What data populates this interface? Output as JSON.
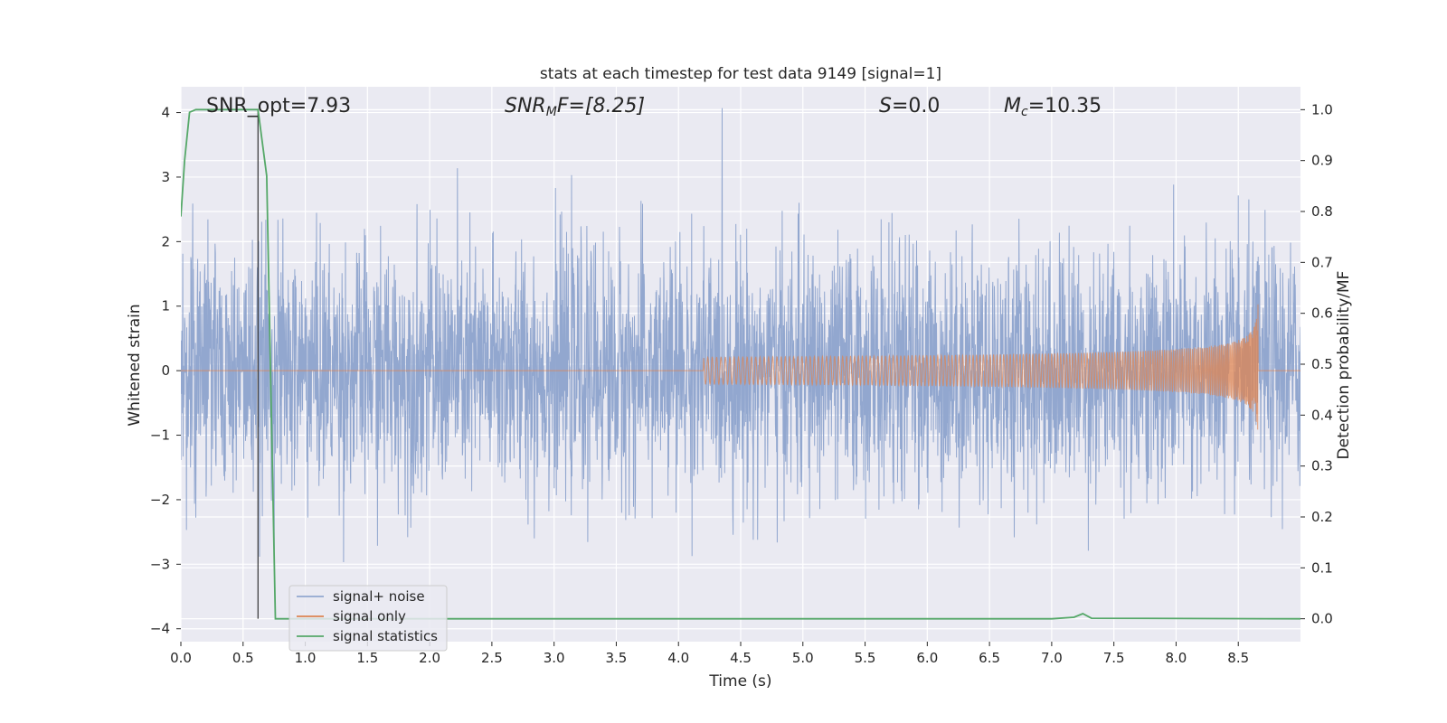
{
  "chart_data": {
    "type": "line",
    "title": "stats at each timestep for test data 9149 [signal=1]",
    "xlabel": "Time (s)",
    "ylabel": "Whitened strain",
    "ylabel_right": "Detection probability/MF",
    "xlim": [
      0.0,
      9.0
    ],
    "ylim": [
      -4.2,
      4.4
    ],
    "ylim_right": [
      -0.045,
      1.045
    ],
    "x_ticks": [
      "0.0",
      "0.5",
      "1.0",
      "1.5",
      "2.0",
      "2.5",
      "3.0",
      "3.5",
      "4.0",
      "4.5",
      "5.0",
      "5.5",
      "6.0",
      "6.5",
      "7.0",
      "7.5",
      "8.0",
      "8.5"
    ],
    "y_ticks": [
      "4",
      "3",
      "2",
      "1",
      "0",
      "−1",
      "−2",
      "−3",
      "−4"
    ],
    "y_right_ticks": [
      "1.0",
      "0.9",
      "0.8",
      "0.7",
      "0.6",
      "0.5",
      "0.4",
      "0.3",
      "0.2",
      "0.1",
      "0.0"
    ],
    "grid": true,
    "legend_position": "lower-left",
    "annotations": {
      "snr_opt": "SNR_opt=7.93",
      "snr_mf_name": "SNR",
      "snr_mf_sub": "M",
      "snr_mf_tail": "F=[8.25]",
      "s_name": "S",
      "s_value": "=0.0",
      "mc_name": "M",
      "mc_sub": "c",
      "mc_value": "=10.35"
    },
    "marker_line_x": 0.62,
    "series": [
      {
        "name": "signal+ noise",
        "color": "#92a7cf",
        "description_values": "whitened noisy strain, approx. Gaussian, mostly within ±2.5, peaks near ±4",
        "noise_std": 0.95,
        "x_range": [
          0.0,
          9.0
        ]
      },
      {
        "name": "signal only",
        "color": "#dd8452",
        "chirp": {
          "start": 4.2,
          "end": 8.66,
          "peak_amplitude": 1.2
        }
      },
      {
        "name": "signal statistics",
        "color": "#55a868",
        "axis": "right",
        "x": [
          0.0,
          0.03,
          0.07,
          0.12,
          0.55,
          0.62,
          0.69,
          0.76,
          0.82,
          7.0,
          7.18,
          7.25,
          7.32,
          9.0
        ],
        "y": [
          0.79,
          0.9,
          0.995,
          1.0,
          1.0,
          1.0,
          0.87,
          0.0,
          0.0,
          0.0,
          0.003,
          0.01,
          0.001,
          0.0
        ]
      }
    ]
  }
}
